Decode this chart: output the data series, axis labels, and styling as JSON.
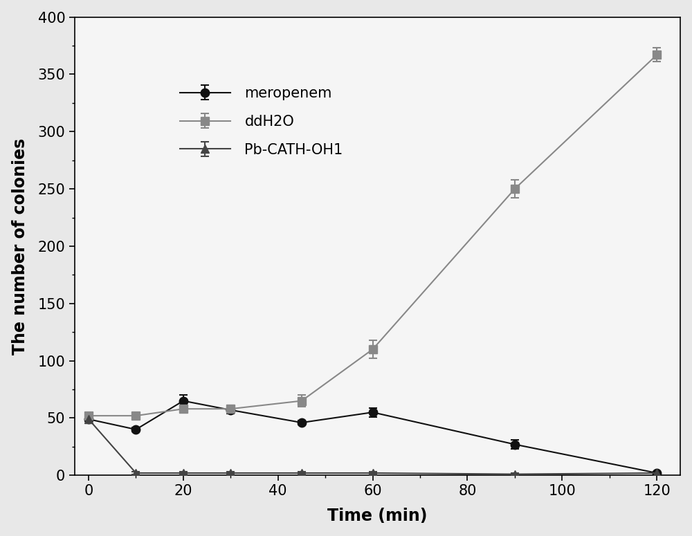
{
  "time": [
    0,
    10,
    20,
    30,
    45,
    60,
    90,
    120
  ],
  "meropenem": {
    "y": [
      49,
      40,
      65,
      57,
      46,
      55,
      27,
      2
    ],
    "yerr": [
      2,
      2,
      5,
      3,
      2,
      4,
      4,
      1
    ],
    "color": "#111111",
    "marker": "o",
    "label": "meropenem",
    "linestyle": "-"
  },
  "ddH2O": {
    "y": [
      52,
      52,
      58,
      58,
      65,
      110,
      250,
      367
    ],
    "yerr": [
      2,
      2,
      3,
      3,
      5,
      8,
      8,
      6
    ],
    "color": "#888888",
    "marker": "s",
    "label": "ddH2O",
    "linestyle": "-"
  },
  "PbCATH": {
    "y": [
      49,
      2,
      2,
      2,
      2,
      2,
      1,
      2
    ],
    "yerr": [
      2,
      1,
      1,
      1,
      1,
      1,
      1,
      1
    ],
    "color": "#444444",
    "marker": "^",
    "label": "Pb-CATH-OH1",
    "linestyle": "-"
  },
  "xlabel": "Time (min)",
  "ylabel": "The number of colonies",
  "xlim": [
    -3,
    125
  ],
  "ylim": [
    0,
    400
  ],
  "yticks": [
    0,
    50,
    100,
    150,
    200,
    250,
    300,
    350,
    400
  ],
  "xticks": [
    0,
    20,
    40,
    60,
    80,
    100,
    120
  ],
  "legend_fontsize": 15,
  "axis_label_fontsize": 17,
  "tick_fontsize": 15,
  "markersize": 9,
  "linewidth": 1.5,
  "elinewidth": 1.5,
  "capsize": 4,
  "bg_color": "#e8e8e8",
  "plot_bg_color": "#f5f5f5"
}
